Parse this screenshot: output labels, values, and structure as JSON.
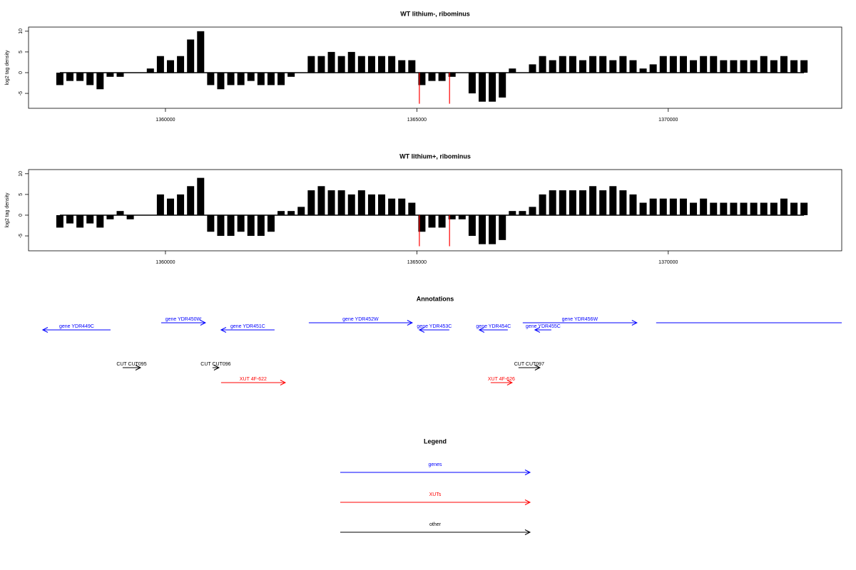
{
  "chart_data": [
    {
      "type": "bar",
      "title": "WT lithium-, ribominus",
      "ylabel": "log2 tag density",
      "xlim": [
        1357277,
        1373450
      ],
      "xticks": [
        1360000,
        1365000,
        1370000
      ],
      "ylim": [
        -8.6,
        11
      ],
      "yticks": [
        -5,
        0,
        5,
        10
      ],
      "color": "#000000",
      "x": [
        1357900,
        1358100,
        1358300,
        1358500,
        1358700,
        1358900,
        1359100,
        1359300,
        1359500,
        1359700,
        1359900,
        1360100,
        1360300,
        1360500,
        1360700,
        1360900,
        1361100,
        1361300,
        1361500,
        1361700,
        1361900,
        1362100,
        1362300,
        1362500,
        1362700,
        1362900,
        1363100,
        1363300,
        1363500,
        1363700,
        1363900,
        1364100,
        1364300,
        1364500,
        1364700,
        1364900,
        1365100,
        1365300,
        1365500,
        1365700,
        1365900,
        1366100,
        1366300,
        1366500,
        1366700,
        1366900,
        1367100,
        1367300,
        1367500,
        1367700,
        1367900,
        1368100,
        1368300,
        1368500,
        1368700,
        1368900,
        1369100,
        1369300,
        1369500,
        1369700,
        1369900,
        1370100,
        1370300,
        1370500,
        1370700,
        1370900,
        1371100,
        1371300,
        1371500,
        1371700,
        1371900,
        1372100,
        1372300,
        1372500,
        1372700
      ],
      "values": [
        -3,
        -2,
        -2,
        -3,
        -4,
        -1,
        -1,
        0,
        0,
        1,
        4,
        3,
        4,
        8,
        10,
        -3,
        -4,
        -3,
        -3,
        -2,
        -3,
        -3,
        -3,
        -1,
        0,
        4,
        4,
        5,
        4,
        5,
        4,
        4,
        4,
        4,
        3,
        3,
        -3,
        -2,
        -2,
        -1,
        0,
        -5,
        -7,
        -7,
        -6,
        1,
        0,
        2,
        4,
        3,
        4,
        4,
        3,
        4,
        4,
        3,
        4,
        3,
        1,
        2,
        4,
        4,
        4,
        3,
        4,
        4,
        3,
        3,
        3,
        3,
        4,
        3,
        4,
        3,
        3
      ],
      "highlights": {
        "x": [
          1365050,
          1365650
        ],
        "values": [
          -7.5,
          -7.5
        ],
        "color": "#ff0000"
      }
    },
    {
      "type": "bar",
      "title": "WT lithium+, ribominus",
      "ylabel": "log2 tag density",
      "xlim": [
        1357277,
        1373450
      ],
      "xticks": [
        1360000,
        1365000,
        1370000
      ],
      "ylim": [
        -8.6,
        11
      ],
      "yticks": [
        -5,
        0,
        5,
        10
      ],
      "color": "#000000",
      "x": [
        1357900,
        1358100,
        1358300,
        1358500,
        1358700,
        1358900,
        1359100,
        1359300,
        1359500,
        1359700,
        1359900,
        1360100,
        1360300,
        1360500,
        1360700,
        1360900,
        1361100,
        1361300,
        1361500,
        1361700,
        1361900,
        1362100,
        1362300,
        1362500,
        1362700,
        1362900,
        1363100,
        1363300,
        1363500,
        1363700,
        1363900,
        1364100,
        1364300,
        1364500,
        1364700,
        1364900,
        1365100,
        1365300,
        1365500,
        1365700,
        1365900,
        1366100,
        1366300,
        1366500,
        1366700,
        1366900,
        1367100,
        1367300,
        1367500,
        1367700,
        1367900,
        1368100,
        1368300,
        1368500,
        1368700,
        1368900,
        1369100,
        1369300,
        1369500,
        1369700,
        1369900,
        1370100,
        1370300,
        1370500,
        1370700,
        1370900,
        1371100,
        1371300,
        1371500,
        1371700,
        1371900,
        1372100,
        1372300,
        1372500,
        1372700
      ],
      "values": [
        -3,
        -2,
        -3,
        -2,
        -3,
        -1,
        1,
        -1,
        0,
        0,
        5,
        4,
        5,
        7,
        9,
        -4,
        -5,
        -5,
        -4,
        -5,
        -5,
        -4,
        1,
        1,
        2,
        6,
        7,
        6,
        6,
        5,
        6,
        5,
        5,
        4,
        4,
        3,
        -4,
        -3,
        -3,
        -1,
        -1,
        -5,
        -7,
        -7,
        -6,
        1,
        1,
        2,
        5,
        6,
        6,
        6,
        6,
        7,
        6,
        7,
        6,
        5,
        3,
        4,
        4,
        4,
        4,
        3,
        4,
        3,
        3,
        3,
        3,
        3,
        3,
        3,
        4,
        3,
        3
      ],
      "highlights": {
        "x": [
          1365050,
          1365650
        ],
        "values": [
          -7.5,
          -7.5
        ],
        "color": "#ff0000"
      }
    }
  ],
  "annotations": {
    "title": "Annotations",
    "xlim": [
      1357277,
      1373450
    ],
    "features": [
      {
        "label": "gene YDR449C",
        "type": "gene",
        "strand": "-",
        "start": 1357560,
        "end": 1358908,
        "color": "#0000ff"
      },
      {
        "label": "gene YDR450W",
        "type": "gene",
        "strand": "+",
        "start": 1359915,
        "end": 1360794,
        "color": "#0000ff"
      },
      {
        "label": "gene YDR451C",
        "type": "gene",
        "strand": "-",
        "start": 1361106,
        "end": 1362170,
        "color": "#0000ff"
      },
      {
        "label": "gene YDR452W",
        "type": "gene",
        "strand": "+",
        "start": 1362851,
        "end": 1364908,
        "color": "#0000ff"
      },
      {
        "label": "gene YDR453C",
        "type": "gene",
        "strand": "-",
        "start": 1365050,
        "end": 1365645,
        "color": "#0000ff"
      },
      {
        "label": "gene YDR454C",
        "type": "gene",
        "strand": "-",
        "start": 1366241,
        "end": 1366809,
        "color": "#0000ff"
      },
      {
        "label": "gene YDR455C",
        "type": "gene",
        "strand": "-",
        "start": 1367348,
        "end": 1367674,
        "color": "#0000ff"
      },
      {
        "label": "gene YDR456W",
        "type": "gene",
        "strand": "+",
        "start": 1367106,
        "end": 1369376,
        "color": "#0000ff"
      },
      {
        "label": null,
        "type": "gene",
        "strand": "+",
        "start": 1369759,
        "end": 1373600,
        "color": "#0000ff"
      },
      {
        "label": "CUT CUT095",
        "type": "CUT",
        "strand": "+",
        "start": 1359149,
        "end": 1359504,
        "color": "#000000"
      },
      {
        "label": "CUT CUT096",
        "type": "CUT",
        "strand": "+",
        "start": 1360936,
        "end": 1361064,
        "color": "#000000"
      },
      {
        "label": "CUT CUT097",
        "type": "CUT",
        "strand": "+",
        "start": 1367021,
        "end": 1367447,
        "color": "#000000"
      },
      {
        "label": "XUT 4F-622",
        "type": "XUT",
        "strand": "+",
        "start": 1361106,
        "end": 1362383,
        "color": "#ff0000"
      },
      {
        "label": "XUT 4F-626",
        "type": "XUT",
        "strand": "+",
        "start": 1366468,
        "end": 1366894,
        "color": "#ff0000"
      }
    ]
  },
  "legend": {
    "title": "Legend",
    "items": [
      {
        "label": "genes",
        "color": "#0000ff"
      },
      {
        "label": "XUTs",
        "color": "#ff0000"
      },
      {
        "label": "other",
        "color": "#000000"
      }
    ]
  }
}
